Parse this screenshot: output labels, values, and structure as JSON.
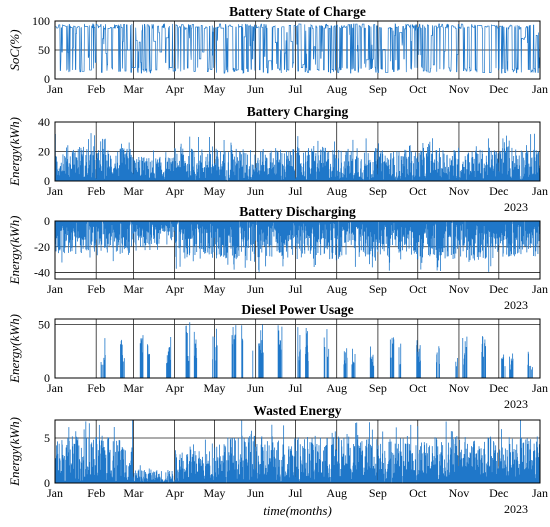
{
  "figure": {
    "xlabel": "time(months)",
    "year_label": "2023",
    "month_ticks": [
      "Jan",
      "Feb",
      "Mar",
      "Apr",
      "May",
      "Jun",
      "Jul",
      "Aug",
      "Sep",
      "Oct",
      "Nov",
      "Dec",
      "Jan"
    ],
    "series_color": "#1f77c9"
  },
  "chart_data": [
    {
      "type": "area",
      "title": "Battery State of Charge",
      "ylabel": "SoC(%)",
      "ylim": [
        0,
        100
      ],
      "yticks": [
        0,
        50,
        100
      ],
      "grid": true,
      "x": "hourly, Jan 2023 - Jan 2024",
      "series": [
        {
          "monthly_range": [
            {
              "month": "Jan",
              "min": 10,
              "max": 95
            },
            {
              "month": "Feb",
              "min": 10,
              "max": 95
            },
            {
              "month": "Mar",
              "min": 10,
              "max": 95
            },
            {
              "month": "Apr",
              "min": 10,
              "max": 95
            },
            {
              "month": "May",
              "min": 10,
              "max": 95
            },
            {
              "month": "Jun",
              "min": 10,
              "max": 95
            },
            {
              "month": "Jul",
              "min": 10,
              "max": 95
            },
            {
              "month": "Aug",
              "min": 10,
              "max": 95
            },
            {
              "month": "Sep",
              "min": 10,
              "max": 95
            },
            {
              "month": "Oct",
              "min": 10,
              "max": 95
            },
            {
              "month": "Nov",
              "min": 10,
              "max": 95
            },
            {
              "month": "Dec",
              "min": 10,
              "max": 95
            }
          ]
        }
      ]
    },
    {
      "type": "area",
      "title": "Battery Charging",
      "ylabel": "Energy(kWh)",
      "ylim": [
        0,
        40
      ],
      "yticks": [
        0,
        20,
        40
      ],
      "grid": true,
      "series": [
        {
          "monthly_peak": [
            {
              "month": "Jan",
              "peak": 33
            },
            {
              "month": "Feb",
              "peak": 30
            },
            {
              "month": "Mar",
              "peak": 22
            },
            {
              "month": "Apr",
              "peak": 31
            },
            {
              "month": "May",
              "peak": 30
            },
            {
              "month": "Jun",
              "peak": 29
            },
            {
              "month": "Jul",
              "peak": 31
            },
            {
              "month": "Aug",
              "peak": 30
            },
            {
              "month": "Sep",
              "peak": 28
            },
            {
              "month": "Oct",
              "peak": 30
            },
            {
              "month": "Nov",
              "peak": 29
            },
            {
              "month": "Dec",
              "peak": 33
            }
          ]
        }
      ]
    },
    {
      "type": "area",
      "title": "Battery Discharging",
      "ylabel": "Energy(kWh)",
      "ylim": [
        -45,
        0
      ],
      "yticks": [
        -40,
        -20,
        0
      ],
      "grid": true,
      "series": [
        {
          "monthly_trough": [
            {
              "month": "Jan",
              "min": -35
            },
            {
              "month": "Feb",
              "min": -36
            },
            {
              "month": "Mar",
              "min": -25
            },
            {
              "month": "Apr",
              "min": -38
            },
            {
              "month": "May",
              "min": -40
            },
            {
              "month": "Jun",
              "min": -40
            },
            {
              "month": "Jul",
              "min": -40
            },
            {
              "month": "Aug",
              "min": -40
            },
            {
              "month": "Sep",
              "min": -40
            },
            {
              "month": "Oct",
              "min": -40
            },
            {
              "month": "Nov",
              "min": -42
            },
            {
              "month": "Dec",
              "min": -37
            }
          ]
        }
      ]
    },
    {
      "type": "area",
      "title": "Diesel Power Usage",
      "ylabel": "Energy(kWh)",
      "ylim": [
        0,
        55
      ],
      "yticks": [
        0,
        50
      ],
      "grid": true,
      "series": [
        {
          "monthly_peak": [
            {
              "month": "Jan",
              "peak": 0
            },
            {
              "month": "Feb",
              "peak": 38
            },
            {
              "month": "Mar",
              "peak": 40
            },
            {
              "month": "Apr",
              "peak": 52
            },
            {
              "month": "May",
              "peak": 50
            },
            {
              "month": "Jun",
              "peak": 50
            },
            {
              "month": "Jul",
              "peak": 50
            },
            {
              "month": "Aug",
              "peak": 30
            },
            {
              "month": "Sep",
              "peak": 40
            },
            {
              "month": "Oct",
              "peak": 35
            },
            {
              "month": "Nov",
              "peak": 40
            },
            {
              "month": "Dec",
              "peak": 25
            }
          ]
        }
      ]
    },
    {
      "type": "area",
      "title": "Wasted Energy",
      "ylabel": "Energy(kWh)",
      "ylim": [
        0,
        7
      ],
      "yticks": [
        0,
        5
      ],
      "grid": true,
      "series": [
        {
          "monthly_peak": [
            {
              "month": "Jan",
              "peak": 7
            },
            {
              "month": "Feb",
              "peak": 7
            },
            {
              "month": "Mar",
              "peak": 2
            },
            {
              "month": "Apr",
              "peak": 5
            },
            {
              "month": "May",
              "peak": 7
            },
            {
              "month": "Jun",
              "peak": 7
            },
            {
              "month": "Jul",
              "peak": 7
            },
            {
              "month": "Aug",
              "peak": 7
            },
            {
              "month": "Sep",
              "peak": 7
            },
            {
              "month": "Oct",
              "peak": 7
            },
            {
              "month": "Nov",
              "peak": 7
            },
            {
              "month": "Dec",
              "peak": 7
            }
          ]
        }
      ]
    }
  ]
}
